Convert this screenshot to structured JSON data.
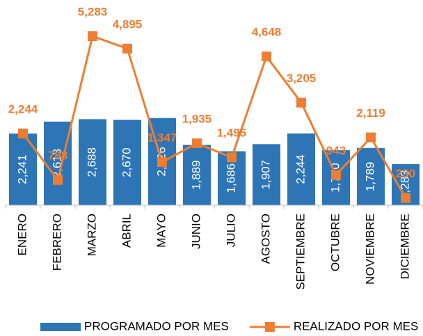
{
  "chart_data": {
    "type": "bar_line",
    "categories": [
      "ENERO",
      "FEBRERO",
      "MARZO",
      "ABRIL",
      "MAYO",
      "JUNIO",
      "JULIO",
      "AGOSTO",
      "SEPTIEMBRE",
      "OCTUBRE",
      "NOVIEMBRE",
      "DICIEMBRE"
    ],
    "series": [
      {
        "name": "PROGRAMADO POR MES",
        "type": "bar",
        "color": "#2e75b6",
        "values": [
          2241,
          2613,
          2688,
          2670,
          2726,
          1889,
          1686,
          1907,
          2244,
          1720,
          1789,
          1283
        ],
        "value_labels": [
          "2,241",
          "2,613",
          "2,688",
          "2,670",
          "2,726",
          "1,889",
          "1,686",
          "1,907",
          "2,244",
          "1,720",
          "1,789",
          "1,283"
        ]
      },
      {
        "name": "REALIZADO POR MES",
        "type": "line",
        "color": "#ed7d31",
        "values": [
          2244,
          788,
          5283,
          4895,
          1347,
          1935,
          1495,
          4648,
          3205,
          943,
          2119,
          230
        ],
        "value_labels": [
          "2,244",
          "788",
          "5,283",
          "4,895",
          "1,347",
          "1,935",
          "1,495",
          "4,648",
          "3,205",
          "943",
          "2,119",
          "230"
        ]
      }
    ],
    "legend": "bottom"
  }
}
